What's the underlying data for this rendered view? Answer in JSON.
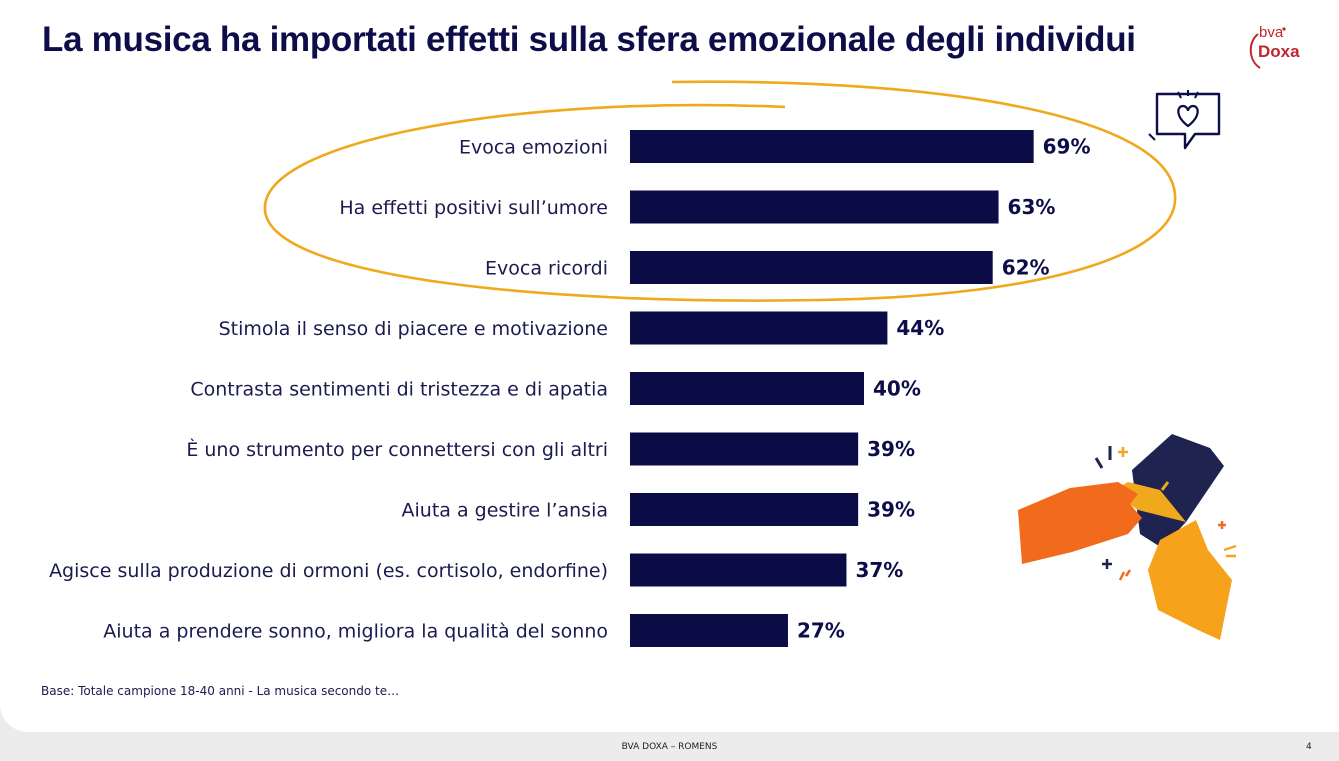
{
  "title": "La musica ha importati effetti sulla sfera emozionale degli individui",
  "logo": {
    "top": "bva",
    "bottom": "Doxa"
  },
  "base_note": "Base: Totale campione 18-40 anni - La musica secondo te…",
  "footer": {
    "center": "BVA DOXA – ROMENS",
    "page": "4"
  },
  "colors": {
    "bar": "#0b0b45",
    "highlight_ellipse": "#f0a81c",
    "title": "#0d0d4a"
  },
  "icons": [
    "heart-chat-icon",
    "hands-illustration"
  ],
  "chart_data": {
    "type": "bar",
    "orientation": "horizontal",
    "categories": [
      "Evoca emozioni",
      "Ha effetti positivi sull’umore",
      "Evoca ricordi",
      "Stimola il senso di piacere e motivazione",
      "Contrasta sentimenti di tristezza e di apatia",
      "È uno strumento per connettersi con gli altri",
      "Aiuta a gestire l’ansia",
      "Agisce sulla produzione di ormoni (es. cortisolo, endorfine)",
      "Aiuta a prendere sonno, migliora la qualità del sonno"
    ],
    "values": [
      69,
      63,
      62,
      44,
      40,
      39,
      39,
      37,
      27
    ],
    "value_labels": [
      "69%",
      "63%",
      "62%",
      "44%",
      "40%",
      "39%",
      "39%",
      "37%",
      "27%"
    ],
    "highlighted_categories": 3,
    "grid": false
  }
}
